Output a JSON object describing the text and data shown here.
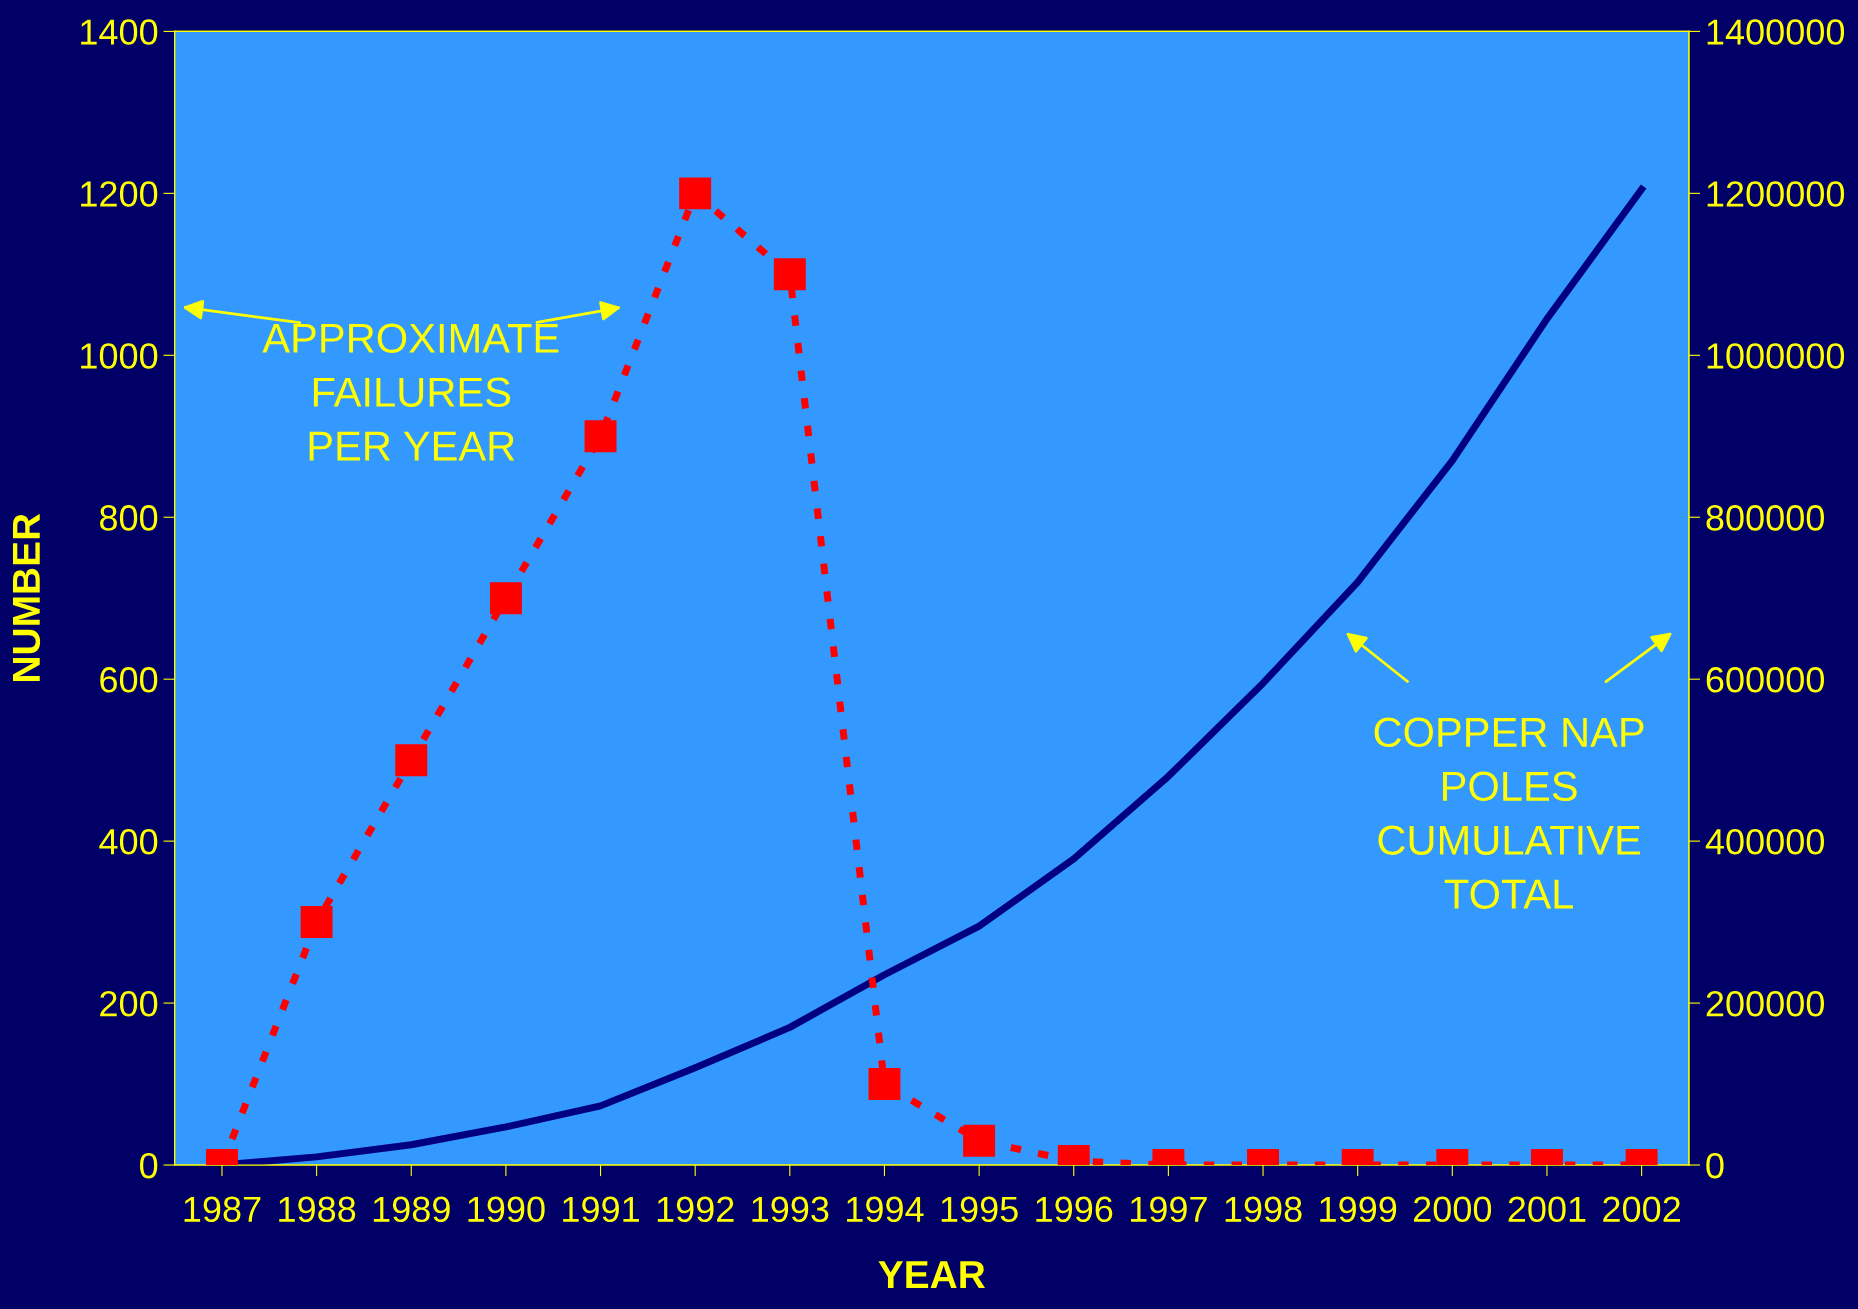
{
  "chart_data": {
    "type": "line",
    "xlabel": "YEAR",
    "ylabel": "NUMBER",
    "categories": [
      "1987",
      "1988",
      "1989",
      "1990",
      "1991",
      "1992",
      "1993",
      "1994",
      "1995",
      "1996",
      "1997",
      "1998",
      "1999",
      "2000",
      "2001",
      "2002"
    ],
    "series": [
      {
        "color": "#ff0000",
        "marker": "square",
        "line_style": "dotted",
        "values": [
          0,
          300,
          500,
          700,
          900,
          1200,
          1100,
          100,
          30,
          5,
          0,
          0,
          0,
          0,
          0,
          0
        ]
      },
      {
        "color": "#000080",
        "marker": "none",
        "line_style": "solid",
        "axis": "y2",
        "values": [
          0,
          10000,
          25000,
          47000,
          73000,
          120000,
          170000,
          235000,
          295000,
          378000,
          480000,
          595000,
          720000,
          870000,
          1045000,
          1205000
        ]
      }
    ],
    "ylim": [
      0,
      1400
    ],
    "yticks": [
      0,
      200,
      400,
      600,
      800,
      1000,
      1200,
      1400
    ],
    "y2lim": [
      0,
      1400000
    ],
    "y2ticks": [
      0,
      200000,
      400000,
      600000,
      800000,
      1000000,
      1200000,
      1400000
    ],
    "annotations": [
      "APPROXIMATE\nFAILURES\nPER YEAR",
      "COPPER NAP\nPOLES\nCUMULATIVE\nTOTAL"
    ],
    "grid": false,
    "legend": false
  }
}
